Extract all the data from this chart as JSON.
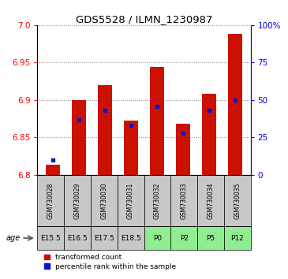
{
  "title": "GDS5528 / ILMN_1230987",
  "samples": [
    "GSM730028",
    "GSM730029",
    "GSM730030",
    "GSM730031",
    "GSM730032",
    "GSM730033",
    "GSM730034",
    "GSM730035"
  ],
  "ages": [
    "E15.5",
    "E16.5",
    "E17.5",
    "E18.5",
    "P0",
    "P2",
    "P5",
    "P12"
  ],
  "age_colors_sample": "#c8c8c8",
  "age_colors_embryo": "#c8c8c8",
  "age_colors_postnatal": "#90ee90",
  "age_is_postnatal": [
    false,
    false,
    false,
    false,
    true,
    true,
    true,
    true
  ],
  "transformed_counts": [
    6.814,
    6.9,
    6.92,
    6.873,
    6.944,
    6.868,
    6.908,
    6.988
  ],
  "percentile_ranks": [
    10.0,
    37.0,
    43.0,
    33.0,
    46.0,
    28.0,
    43.0,
    50.0
  ],
  "ylim_left": [
    6.8,
    7.0
  ],
  "ylim_right": [
    0,
    100
  ],
  "yticks_left": [
    6.8,
    6.85,
    6.9,
    6.95,
    7.0
  ],
  "yticks_right": [
    0,
    25,
    50,
    75,
    100
  ],
  "bar_color": "#cc1100",
  "dot_color": "#1111cc",
  "baseline": 6.8,
  "bar_width": 0.55,
  "legend_items": [
    "transformed count",
    "percentile rank within the sample"
  ],
  "legend_colors": [
    "#cc1100",
    "#1111cc"
  ]
}
